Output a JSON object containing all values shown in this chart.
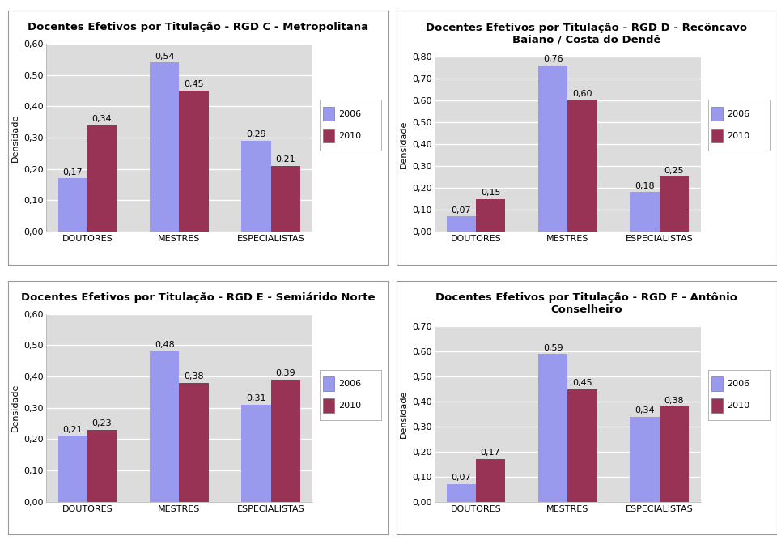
{
  "charts": [
    {
      "title_lines": [
        "Docentes Efetivos por Titulação - RGD C - Metropolitana"
      ],
      "categories": [
        "DOUTORES",
        "MESTRES",
        "ESPECIALISTAS"
      ],
      "values_2006": [
        0.17,
        0.54,
        0.29
      ],
      "values_2010": [
        0.34,
        0.45,
        0.21
      ],
      "ylim": [
        0.0,
        0.6
      ],
      "yticks": [
        0.0,
        0.1,
        0.2,
        0.3,
        0.4,
        0.5,
        0.6
      ]
    },
    {
      "title_lines": [
        "Docentes Efetivos por Titulação - RGD D - Recôncavo",
        "Baiano / Costa do Dendê"
      ],
      "categories": [
        "DOUTORES",
        "MESTRES",
        "ESPECIALISTAS"
      ],
      "values_2006": [
        0.07,
        0.76,
        0.18
      ],
      "values_2010": [
        0.15,
        0.6,
        0.25
      ],
      "ylim": [
        0.0,
        0.8
      ],
      "yticks": [
        0.0,
        0.1,
        0.2,
        0.3,
        0.4,
        0.5,
        0.6,
        0.7,
        0.8
      ]
    },
    {
      "title_lines": [
        "Docentes Efetivos por Titulação - RGD E - Semiárido Norte"
      ],
      "categories": [
        "DOUTORES",
        "MESTRES",
        "ESPECIALISTAS"
      ],
      "values_2006": [
        0.21,
        0.48,
        0.31
      ],
      "values_2010": [
        0.23,
        0.38,
        0.39
      ],
      "ylim": [
        0.0,
        0.6
      ],
      "yticks": [
        0.0,
        0.1,
        0.2,
        0.3,
        0.4,
        0.5,
        0.6
      ]
    },
    {
      "title_lines": [
        "Docentes Efetivos por Titulação - RGD F - Antônio",
        "Conselheiro"
      ],
      "categories": [
        "DOUTORES",
        "MESTRES",
        "ESPECIALISTAS"
      ],
      "values_2006": [
        0.07,
        0.59,
        0.34
      ],
      "values_2010": [
        0.17,
        0.45,
        0.38
      ],
      "ylim": [
        0.0,
        0.7
      ],
      "yticks": [
        0.0,
        0.1,
        0.2,
        0.3,
        0.4,
        0.5,
        0.6,
        0.7
      ]
    }
  ],
  "color_2006": "#9999EE",
  "color_2010": "#993355",
  "bar_width": 0.32,
  "ylabel": "Densidade",
  "legend_labels": [
    "2006",
    "2010"
  ],
  "plot_bg_color": "#DCDCDC",
  "outer_bg_color": "#FFFFFF",
  "panel_border_color": "#999999",
  "grid_color": "#FFFFFF",
  "title_fontsize": 9.5,
  "label_fontsize": 8,
  "tick_fontsize": 8,
  "annotation_fontsize": 8,
  "legend_fontsize": 8
}
